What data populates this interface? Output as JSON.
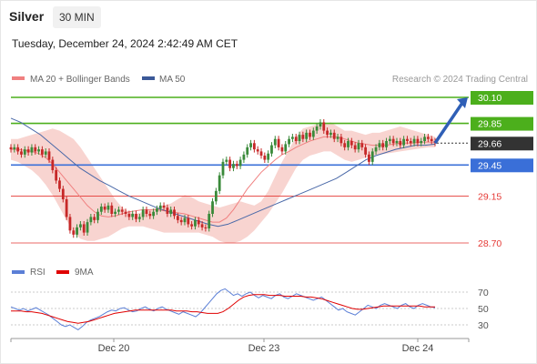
{
  "header": {
    "instrument": "Silver",
    "timeframe": "30 MIN",
    "datetime": "Tuesday, December 24, 2024 2:42:49 AM CET"
  },
  "legend": {
    "ma20": "MA 20 + Bollinger Bands",
    "ma50": "MA 50",
    "credit": "Research © 2024 Trading Central"
  },
  "colors": {
    "resistance": "#4caf1c",
    "support": "#3a6fd8",
    "line_level": "#e53935",
    "current": "#333333",
    "bollinger": "#f5c6c0",
    "ma20": "#f08080",
    "ma50": "#4a69a8",
    "candle_up": "#3a8a3a",
    "candle_down": "#c62828",
    "arrow": "#2f5fb6",
    "rsi": "#5b7fd6",
    "rsi_ma": "#e00000"
  },
  "chart_data": [
    {
      "type": "candlestick",
      "x_labels": [
        "Dec 20",
        "Dec 23",
        "Dec 24"
      ],
      "ylim": [
        28.6,
        30.2
      ],
      "levels": [
        {
          "value": 30.1,
          "label": "30.10",
          "kind": "resistance"
        },
        {
          "value": 29.85,
          "label": "29.85",
          "kind": "resistance"
        },
        {
          "value": 29.66,
          "label": "29.66",
          "kind": "current"
        },
        {
          "value": 29.45,
          "label": "29.45",
          "kind": "support"
        },
        {
          "value": 29.15,
          "label": "29.15",
          "kind": "line"
        },
        {
          "value": 28.7,
          "label": "28.70",
          "kind": "line"
        }
      ],
      "target": 30.1,
      "close": [
        29.6,
        29.62,
        29.58,
        29.55,
        29.6,
        29.57,
        29.62,
        29.58,
        29.6,
        29.55,
        29.58,
        29.5,
        29.4,
        29.3,
        29.22,
        29.12,
        28.95,
        28.82,
        28.78,
        28.85,
        28.88,
        28.8,
        28.9,
        28.95,
        28.92,
        29.0,
        29.05,
        29.02,
        29.06,
        28.98,
        29.0,
        29.02,
        29.0,
        28.98,
        28.95,
        28.98,
        28.93,
        28.95,
        29.02,
        28.98,
        28.96,
        29.0,
        29.03,
        29.06,
        29.04,
        28.98,
        29.02,
        28.96,
        28.92,
        28.9,
        28.94,
        28.88,
        28.86,
        28.92,
        28.88,
        28.85,
        28.84,
        28.98,
        29.1,
        29.2,
        29.35,
        29.48,
        29.5,
        29.42,
        29.46,
        29.44,
        29.5,
        29.55,
        29.62,
        29.66,
        29.6,
        29.58,
        29.54,
        29.5,
        29.56,
        29.64,
        29.7,
        29.62,
        29.58,
        29.65,
        29.7,
        29.72,
        29.68,
        29.74,
        29.7,
        29.76,
        29.72,
        29.78,
        29.82,
        29.86,
        29.78,
        29.74,
        29.76,
        29.7,
        29.72,
        29.66,
        29.62,
        29.68,
        29.64,
        29.6,
        29.66,
        29.62,
        29.55,
        29.48,
        29.58,
        29.62,
        29.66,
        29.62,
        29.68,
        29.7,
        29.66,
        29.68,
        29.64,
        29.7,
        29.68,
        29.66,
        29.7,
        29.66,
        29.68,
        29.72,
        29.7,
        29.68,
        29.66
      ],
      "bollinger_upper": [
        29.7,
        29.7,
        29.72,
        29.74,
        29.76,
        29.78,
        29.8,
        29.78,
        29.74,
        29.7,
        29.62,
        29.52,
        29.42,
        29.32,
        29.22,
        29.12,
        29.04,
        29.0,
        28.98,
        29.0,
        29.02,
        29.04,
        29.06,
        29.08,
        29.12,
        29.16,
        29.14,
        29.1,
        29.08,
        29.06,
        29.04,
        29.06,
        29.08,
        29.1,
        29.08,
        29.06,
        29.1,
        29.2,
        29.34,
        29.48,
        29.6,
        29.72,
        29.8,
        29.82,
        29.84,
        29.84,
        29.86,
        29.82,
        29.78,
        29.78,
        29.76,
        29.74,
        29.76,
        29.76,
        29.78,
        29.8,
        29.82,
        29.8,
        29.78,
        29.76,
        29.74,
        29.72
      ],
      "bollinger_lower": [
        29.5,
        29.48,
        29.44,
        29.4,
        29.34,
        29.26,
        29.16,
        29.04,
        28.92,
        28.8,
        28.74,
        28.72,
        28.72,
        28.74,
        28.76,
        28.8,
        28.84,
        28.86,
        28.86,
        28.86,
        28.84,
        28.82,
        28.8,
        28.8,
        28.8,
        28.8,
        28.8,
        28.8,
        28.78,
        28.76,
        28.72,
        28.7,
        28.7,
        28.72,
        28.76,
        28.82,
        28.9,
        28.98,
        29.08,
        29.18,
        29.3,
        29.42,
        29.5,
        29.54,
        29.56,
        29.58,
        29.58,
        29.54,
        29.5,
        29.48,
        29.5,
        29.52,
        29.54,
        29.55,
        29.56,
        29.57,
        29.58,
        29.59,
        29.6,
        29.61,
        29.62,
        29.62
      ],
      "ma20": [
        29.6,
        29.6,
        29.59,
        29.58,
        29.56,
        29.52,
        29.46,
        29.38,
        29.3,
        29.22,
        29.14,
        29.06,
        29.0,
        28.96,
        28.95,
        28.96,
        28.98,
        29.0,
        29.01,
        29.02,
        29.02,
        29.02,
        29.01,
        29.0,
        28.99,
        28.98,
        28.96,
        28.94,
        28.92,
        28.9,
        28.9,
        28.94,
        29.02,
        29.12,
        29.22,
        29.3,
        29.38,
        29.44,
        29.5,
        29.55,
        29.58,
        29.62,
        29.65,
        29.68,
        29.7,
        29.72,
        29.72,
        29.72,
        29.7,
        29.68,
        29.66,
        29.65,
        29.64,
        29.64,
        29.64,
        29.65,
        29.66,
        29.66,
        29.66,
        29.67,
        29.67,
        29.67
      ],
      "ma50": [
        29.9,
        29.86,
        29.8,
        29.74,
        29.66,
        29.58,
        29.5,
        29.42,
        29.36,
        29.3,
        29.25,
        29.2,
        29.15,
        29.11,
        29.07,
        29.03,
        29.0,
        28.97,
        28.94,
        28.91,
        28.88,
        28.86,
        28.88,
        28.92,
        28.96,
        29.0,
        29.04,
        29.08,
        29.12,
        29.16,
        29.2,
        29.24,
        29.28,
        29.32,
        29.38,
        29.44,
        29.5,
        29.54,
        29.57,
        29.6,
        29.62,
        29.64,
        29.64,
        29.65
      ]
    },
    {
      "type": "line",
      "x_labels": [
        "Dec 20",
        "Dec 23",
        "Dec 24"
      ],
      "series": [
        {
          "name": "RSI"
        },
        {
          "name": "9MA"
        }
      ],
      "ylim": [
        20,
        80
      ],
      "y_ticks": [
        70,
        50,
        30
      ],
      "rsi": [
        52,
        50,
        48,
        50,
        47,
        49,
        51,
        48,
        45,
        42,
        38,
        34,
        30,
        28,
        30,
        27,
        24,
        28,
        33,
        36,
        38,
        40,
        43,
        46,
        48,
        47,
        50,
        51,
        48,
        46,
        47,
        50,
        52,
        49,
        47,
        50,
        52,
        49,
        47,
        45,
        43,
        46,
        44,
        42,
        40,
        44,
        50,
        56,
        62,
        68,
        72,
        74,
        70,
        66,
        68,
        65,
        68,
        70,
        66,
        63,
        66,
        64,
        62,
        66,
        68,
        64,
        62,
        65,
        68,
        66,
        64,
        62,
        60,
        62,
        64,
        60,
        56,
        52,
        48,
        50,
        46,
        44,
        42,
        46,
        50,
        54,
        52,
        50,
        54,
        56,
        54,
        52,
        50,
        54,
        56,
        52,
        50,
        54,
        56,
        54,
        52,
        51
      ],
      "rsi_ma": [
        47,
        47,
        47,
        46,
        46,
        45,
        44,
        42,
        40,
        38,
        36,
        34,
        33,
        32,
        33,
        34,
        36,
        38,
        40,
        42,
        44,
        45,
        46,
        47,
        48,
        48,
        48,
        48,
        48,
        48,
        48,
        48,
        47,
        47,
        47,
        46,
        46,
        45,
        44,
        44,
        44,
        46,
        50,
        55,
        60,
        64,
        66,
        67,
        67,
        67,
        66,
        66,
        66,
        65,
        65,
        65,
        65,
        64,
        64,
        63,
        62,
        60,
        58,
        56,
        54,
        52,
        50,
        49,
        49,
        50,
        51,
        52,
        53,
        53,
        53,
        53,
        53,
        53,
        53,
        53,
        52,
        52,
        52
      ]
    }
  ]
}
